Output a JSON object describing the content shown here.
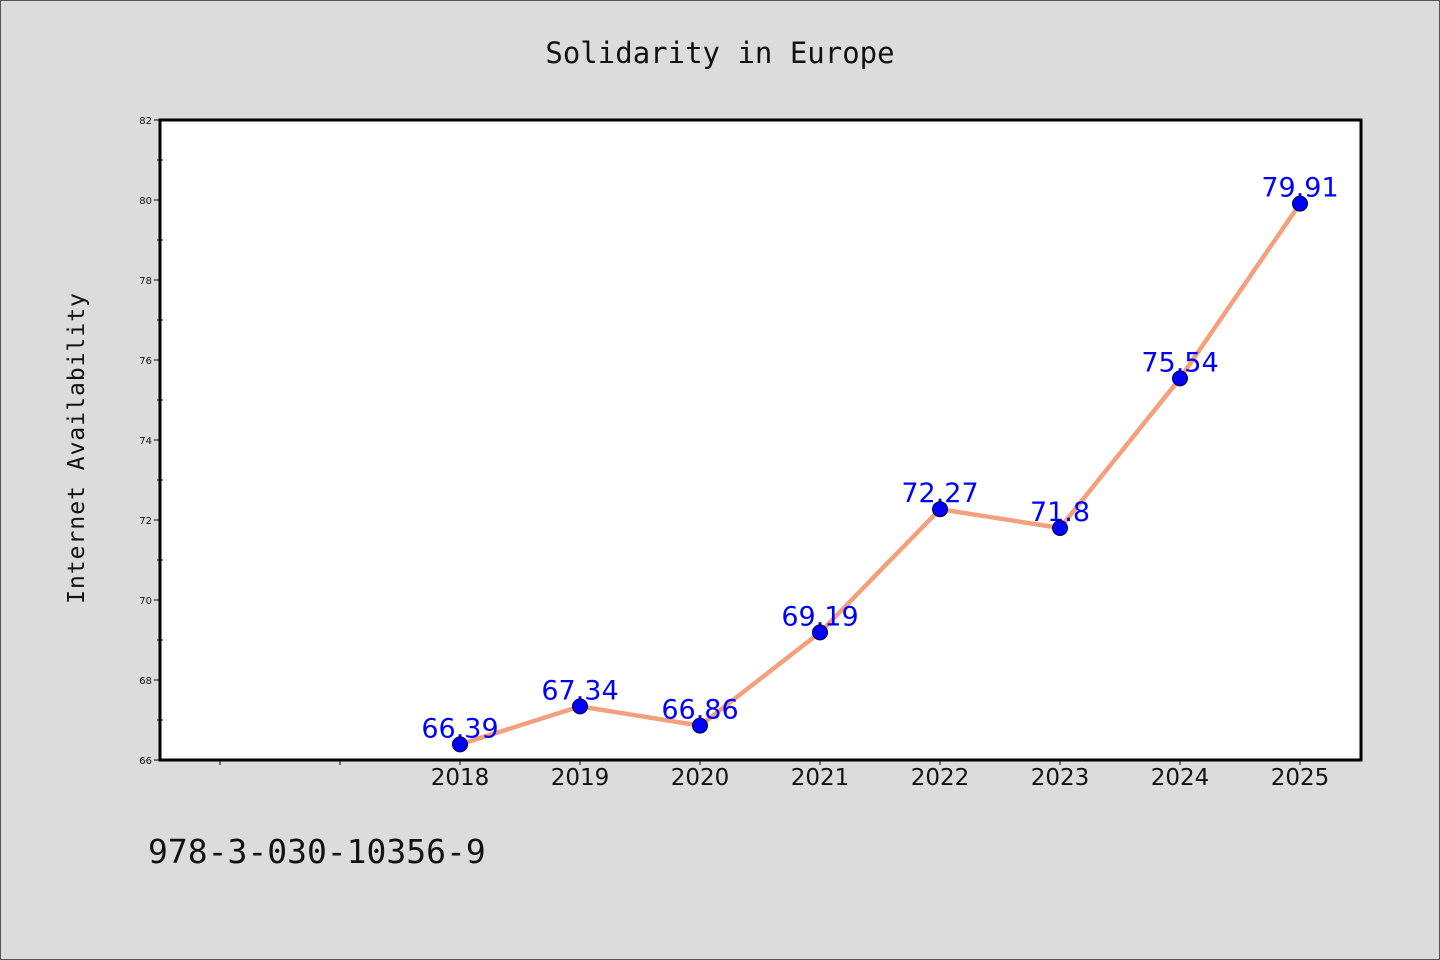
{
  "chart_data": {
    "type": "line",
    "title": "Solidarity in Europe",
    "xlabel": "",
    "ylabel": "Internet Availability",
    "categories": [
      "2018",
      "2019",
      "2020",
      "2021",
      "2022",
      "2023",
      "2024",
      "2025"
    ],
    "series": [
      {
        "values": [
          66.39,
          67.34,
          66.86,
          69.19,
          72.27,
          71.8,
          75.54,
          79.91
        ],
        "data_labels": [
          "66.39",
          "67.34",
          "66.86",
          "69.19",
          "72.27",
          "71.8",
          "75.54",
          "79.91"
        ]
      }
    ],
    "ylim": [
      66,
      82
    ],
    "y_ticks": [
      "66",
      "68",
      "70",
      "72",
      "74",
      "76",
      "78",
      "80",
      "82"
    ],
    "x_slots_before_first_category": 2,
    "grid": false,
    "colors": {
      "line": "#f4a07e",
      "marker": "#0000ff",
      "data_label": "#0000ff",
      "background": "#dcdcdc",
      "plot_background": "#ffffff"
    }
  },
  "footer": {
    "identifier": "978-3-030-10356-9"
  }
}
